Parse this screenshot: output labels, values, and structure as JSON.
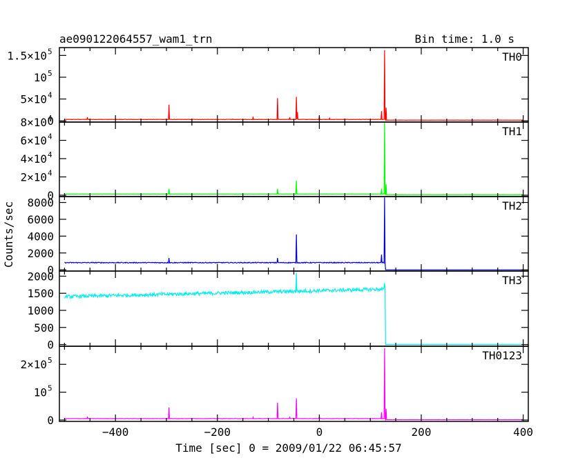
{
  "header": {
    "title": "ae090122064557_wam1_trn",
    "bin_time": "Bin time: 1.0 s"
  },
  "chart_data": {
    "type": "line",
    "xlabel": "Time [sec] 0 = 2009/01/22 06:45:57",
    "ylabel": "Counts/sec",
    "xlim": [
      -510,
      410
    ],
    "x_ticks": [
      {
        "value": -400,
        "label": "−400"
      },
      {
        "value": -200,
        "label": "−200"
      },
      {
        "value": 0,
        "label": "0"
      },
      {
        "value": 200,
        "label": "200"
      },
      {
        "value": 400,
        "label": "400"
      }
    ],
    "x_start": -500,
    "x_end": 400,
    "event_time": 128,
    "panels": [
      {
        "name": "TH0",
        "color": "#ff0000",
        "ylim": [
          -3000,
          168000
        ],
        "ticks": [
          {
            "value": 0,
            "base": "0",
            "exp": ""
          },
          {
            "value": 50000,
            "base": "5×10",
            "exp": "4"
          },
          {
            "value": 100000,
            "base": "10",
            "exp": "5"
          },
          {
            "value": 150000,
            "base": "1.5×10",
            "exp": "5"
          }
        ],
        "pre_level": 3000,
        "pre_noise": 400,
        "post_level": 1500,
        "post_noise": 200,
        "spikes": [
          {
            "t": -455,
            "v": 8000
          },
          {
            "t": -295,
            "v": 37000
          },
          {
            "t": -170,
            "v": 4000
          },
          {
            "t": -130,
            "v": 9000
          },
          {
            "t": -82,
            "v": 52000
          },
          {
            "t": -58,
            "v": 8000
          },
          {
            "t": -45,
            "v": 55000
          },
          {
            "t": -43,
            "v": 20000
          },
          {
            "t": 0,
            "v": 11000
          },
          {
            "t": 20,
            "v": 6000
          },
          {
            "t": 122,
            "v": 22000
          },
          {
            "t": 128,
            "v": 162000
          },
          {
            "t": 131,
            "v": 30000
          }
        ]
      },
      {
        "name": "TH1",
        "color": "#00ff00",
        "ylim": [
          -1500,
          80000
        ],
        "ticks": [
          {
            "value": 0,
            "base": "0",
            "exp": ""
          },
          {
            "value": 20000,
            "base": "2×10",
            "exp": "4"
          },
          {
            "value": 40000,
            "base": "4×10",
            "exp": "4"
          },
          {
            "value": 60000,
            "base": "6×10",
            "exp": "4"
          },
          {
            "value": 80000,
            "base": "8×10",
            "exp": "4"
          }
        ],
        "pre_level": 1200,
        "pre_noise": 150,
        "post_level": 600,
        "post_noise": 80,
        "spikes": [
          {
            "t": -295,
            "v": 7000
          },
          {
            "t": -82,
            "v": 7000
          },
          {
            "t": -45,
            "v": 16000
          },
          {
            "t": 122,
            "v": 7000
          },
          {
            "t": 128,
            "v": 80000
          },
          {
            "t": 131,
            "v": 12000
          }
        ]
      },
      {
        "name": "TH2",
        "color": "#0000cc",
        "ylim": [
          -150,
          8700
        ],
        "ticks": [
          {
            "value": 0,
            "base": "0",
            "exp": ""
          },
          {
            "value": 2000,
            "base": "2000",
            "exp": ""
          },
          {
            "value": 4000,
            "base": "4000",
            "exp": ""
          },
          {
            "value": 6000,
            "base": "6000",
            "exp": ""
          },
          {
            "value": 8000,
            "base": "8000",
            "exp": ""
          }
        ],
        "pre_level": 850,
        "pre_noise": 50,
        "post_level": 0,
        "post_noise": 0,
        "spikes": [
          {
            "t": -295,
            "v": 1400
          },
          {
            "t": -82,
            "v": 1400
          },
          {
            "t": -45,
            "v": 4200
          },
          {
            "t": 122,
            "v": 1800
          },
          {
            "t": 128,
            "v": 8600
          }
        ]
      },
      {
        "name": "TH3",
        "color": "#00eeee",
        "ylim": [
          -50,
          2150
        ],
        "ticks": [
          {
            "value": 0,
            "base": "0",
            "exp": ""
          },
          {
            "value": 500,
            "base": "500",
            "exp": ""
          },
          {
            "value": 1000,
            "base": "1000",
            "exp": ""
          },
          {
            "value": 1500,
            "base": "1500",
            "exp": ""
          },
          {
            "value": 2000,
            "base": "2000",
            "exp": ""
          }
        ],
        "pre_level_start": 1400,
        "pre_level_end": 1620,
        "pre_noise": 50,
        "post_level": 0,
        "post_noise": 0,
        "spikes": [
          {
            "t": -45,
            "v": 2100
          },
          {
            "t": 128,
            "v": 1800
          }
        ]
      },
      {
        "name": "TH0123",
        "color": "#ff00ff",
        "ylim": [
          -5000,
          265000
        ],
        "ticks": [
          {
            "value": 0,
            "base": "0",
            "exp": ""
          },
          {
            "value": 100000,
            "base": "10",
            "exp": "5"
          },
          {
            "value": 200000,
            "base": "2×10",
            "exp": "5"
          }
        ],
        "pre_level": 5000,
        "pre_noise": 500,
        "post_level": 1500,
        "post_noise": 200,
        "spikes": [
          {
            "t": -455,
            "v": 12000
          },
          {
            "t": -295,
            "v": 45000
          },
          {
            "t": -130,
            "v": 10000
          },
          {
            "t": -82,
            "v": 62000
          },
          {
            "t": -58,
            "v": 10000
          },
          {
            "t": -45,
            "v": 78000
          },
          {
            "t": 0,
            "v": 12000
          },
          {
            "t": 122,
            "v": 28000
          },
          {
            "t": 128,
            "v": 258000
          },
          {
            "t": 131,
            "v": 40000
          }
        ]
      }
    ]
  }
}
